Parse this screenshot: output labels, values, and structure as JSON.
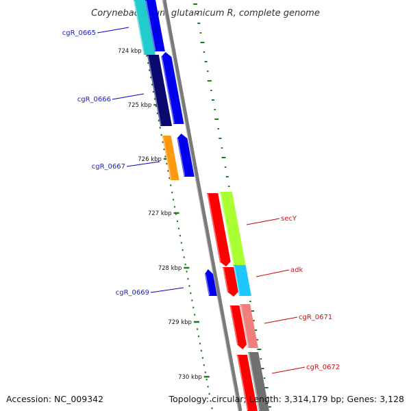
{
  "title": "Corynebacterium glutamicum R, complete genome",
  "footer": {
    "accession": "Accession: NC_009342",
    "topology": "Topology: circular; Length: 3,314,179 bp; Genes: 3,128"
  },
  "ticks": [
    {
      "label": "724 kbp"
    },
    {
      "label": "725 kbp"
    },
    {
      "label": "726 kbp"
    },
    {
      "label": "727 kbp"
    },
    {
      "label": "728 kbp"
    },
    {
      "label": "729 kbp"
    },
    {
      "label": "730 kbp"
    }
  ],
  "genes": [
    {
      "name": "cgR_0665",
      "strand": "left",
      "color": "#0000cc"
    },
    {
      "name": "cgR_0666",
      "strand": "left",
      "color": "#0000cc"
    },
    {
      "name": "cgR_0667",
      "strand": "left",
      "color": "#0000cc"
    },
    {
      "name": "cgR_0669",
      "strand": "left",
      "color": "#0000cc"
    },
    {
      "name": "secY",
      "strand": "right",
      "color": "#cc0000"
    },
    {
      "name": "adk",
      "strand": "right",
      "color": "#cc0000"
    },
    {
      "name": "cgR_0671",
      "strand": "right",
      "color": "#cc0000"
    },
    {
      "name": "cgR_0672",
      "strand": "right",
      "color": "#cc0000"
    }
  ],
  "colors": {
    "backbone": "#7a7a7a",
    "gc_track": "#1b7a1b",
    "strand_minus": "#0000ee",
    "strand_plus": "#ff0000",
    "cyan": "#22cccc",
    "navy": "#0a0a6e",
    "orange": "#ff9912",
    "lime": "#aaff33",
    "sky": "#1ec8ff",
    "salmon": "#f08080",
    "darkgray": "#707070"
  }
}
